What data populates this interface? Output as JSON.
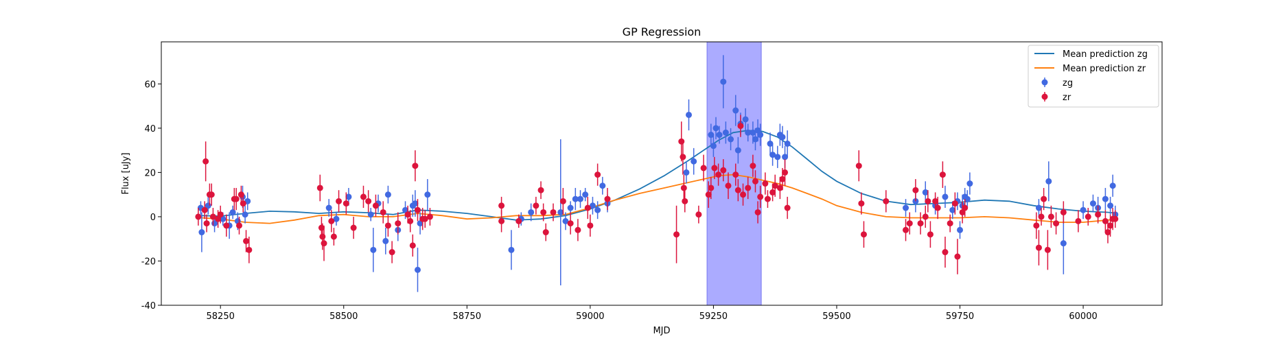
{
  "chart_data": {
    "type": "scatter",
    "title": "GP Regression",
    "xlabel": "MJD",
    "ylabel": "Flux [uJy]",
    "xlim": [
      58130,
      60160
    ],
    "ylim": [
      -40,
      79
    ],
    "xticks": [
      58250,
      58500,
      58750,
      59000,
      59250,
      59500,
      59750,
      60000
    ],
    "yticks": [
      -40,
      -20,
      0,
      20,
      40,
      60
    ],
    "grid": false,
    "legend_position": "top-right",
    "highlight_region": {
      "x": [
        59237,
        59347
      ],
      "color": "#a6a6ff"
    },
    "series": [
      {
        "name": "Mean prediction zg",
        "kind": "line",
        "color": "#1f77b4",
        "x": [
          58210,
          58250,
          58300,
          58350,
          58400,
          58450,
          58500,
          58550,
          58600,
          58650,
          58700,
          58750,
          58800,
          58850,
          58900,
          58950,
          59000,
          59050,
          59100,
          59150,
          59200,
          59230,
          59260,
          59290,
          59320,
          59350,
          59380,
          59410,
          59440,
          59470,
          59500,
          59550,
          59600,
          59650,
          59700,
          59750,
          59800,
          59850,
          59900,
          59950,
          60000,
          60050,
          60070
        ],
        "y": [
          0.5,
          0.3,
          1.5,
          2.5,
          2.2,
          1.5,
          2.2,
          1.8,
          1.0,
          3.0,
          2.5,
          1.5,
          0.0,
          -1.5,
          -1.0,
          0.5,
          3.5,
          7.5,
          12.5,
          18.5,
          25.5,
          30.0,
          34.5,
          38.0,
          39.0,
          38.5,
          36.0,
          31.5,
          26.0,
          20.5,
          16.0,
          10.5,
          7.0,
          5.5,
          6.0,
          6.5,
          7.5,
          7.0,
          5.0,
          3.5,
          2.5,
          2.0,
          1.5
        ]
      },
      {
        "name": "Mean prediction zr",
        "kind": "line",
        "color": "#ff7f0e",
        "x": [
          58210,
          58250,
          58300,
          58350,
          58400,
          58450,
          58500,
          58550,
          58600,
          58650,
          58700,
          58750,
          58800,
          58850,
          58900,
          58950,
          59000,
          59050,
          59100,
          59150,
          59200,
          59230,
          59260,
          59290,
          59320,
          59350,
          59380,
          59410,
          59440,
          59470,
          59500,
          59550,
          59600,
          59650,
          59700,
          59750,
          59800,
          59850,
          59900,
          59950,
          60000,
          60050,
          60070
        ],
        "y": [
          -0.5,
          -1.0,
          -2.5,
          -3.0,
          -1.5,
          0.5,
          1.0,
          0.0,
          0.0,
          1.5,
          0.5,
          -1.0,
          -0.5,
          0.5,
          0.5,
          1.0,
          4.0,
          7.5,
          10.5,
          13.0,
          15.5,
          17.0,
          18.5,
          19.0,
          18.0,
          16.5,
          15.0,
          13.0,
          10.5,
          8.0,
          5.0,
          2.0,
          0.0,
          -0.5,
          -0.5,
          -0.5,
          0.0,
          -0.5,
          -1.5,
          -2.5,
          -2.5,
          -1.5,
          -1.0
        ]
      },
      {
        "name": "zg",
        "kind": "errorbar",
        "color": "#4169e1",
        "points": [
          [
            58210,
            4,
            3
          ],
          [
            58212,
            -7,
            9
          ],
          [
            58225,
            5,
            4
          ],
          [
            58238,
            -3,
            4
          ],
          [
            58255,
            -1,
            3
          ],
          [
            58268,
            -4,
            6
          ],
          [
            58275,
            2,
            3
          ],
          [
            58285,
            -2,
            4
          ],
          [
            58295,
            9,
            5
          ],
          [
            58300,
            1,
            4
          ],
          [
            58305,
            7,
            4
          ],
          [
            58470,
            4,
            4
          ],
          [
            58485,
            -1,
            3
          ],
          [
            58510,
            9,
            4
          ],
          [
            58555,
            1,
            3
          ],
          [
            58560,
            -15,
            10
          ],
          [
            58570,
            6,
            4
          ],
          [
            58585,
            -11,
            6
          ],
          [
            58590,
            10,
            4
          ],
          [
            58610,
            -6,
            5
          ],
          [
            58625,
            3,
            4
          ],
          [
            58640,
            5,
            5
          ],
          [
            58645,
            6,
            6
          ],
          [
            58650,
            -24,
            10
          ],
          [
            58655,
            -3,
            5
          ],
          [
            58670,
            10,
            7
          ],
          [
            58840,
            -15,
            9
          ],
          [
            58860,
            -1,
            3
          ],
          [
            58880,
            2,
            4
          ],
          [
            58940,
            2,
            33
          ],
          [
            58950,
            -2,
            4
          ],
          [
            58960,
            4,
            3
          ],
          [
            58970,
            8,
            5
          ],
          [
            58980,
            8,
            4
          ],
          [
            58990,
            10,
            3
          ],
          [
            59005,
            5,
            4
          ],
          [
            59015,
            3,
            4
          ],
          [
            59025,
            14,
            4
          ],
          [
            59035,
            6,
            4
          ],
          [
            59195,
            20,
            5
          ],
          [
            59200,
            46,
            7
          ],
          [
            59210,
            25,
            6
          ],
          [
            59245,
            37,
            5
          ],
          [
            59250,
            32,
            5
          ],
          [
            59255,
            40,
            5
          ],
          [
            59262,
            37,
            4
          ],
          [
            59270,
            61,
            12
          ],
          [
            59275,
            38,
            5
          ],
          [
            59285,
            35,
            5
          ],
          [
            59295,
            48,
            7
          ],
          [
            59300,
            30,
            6
          ],
          [
            59305,
            42,
            5
          ],
          [
            59315,
            44,
            5
          ],
          [
            59320,
            38,
            4
          ],
          [
            59330,
            38,
            5
          ],
          [
            59335,
            35,
            5
          ],
          [
            59340,
            39,
            5
          ],
          [
            59345,
            37,
            5
          ],
          [
            59365,
            33,
            5
          ],
          [
            59370,
            28,
            5
          ],
          [
            59380,
            27,
            5
          ],
          [
            59385,
            37,
            5
          ],
          [
            59390,
            36,
            5
          ],
          [
            59395,
            27,
            5
          ],
          [
            59400,
            33,
            6
          ],
          [
            59640,
            4,
            4
          ],
          [
            59660,
            7,
            5
          ],
          [
            59680,
            11,
            5
          ],
          [
            59700,
            5,
            4
          ],
          [
            59720,
            9,
            5
          ],
          [
            59735,
            3,
            4
          ],
          [
            59745,
            7,
            4
          ],
          [
            59750,
            -6,
            4
          ],
          [
            59755,
            5,
            5
          ],
          [
            59760,
            9,
            4
          ],
          [
            59765,
            8,
            4
          ],
          [
            59770,
            15,
            5
          ],
          [
            59910,
            4,
            4
          ],
          [
            59930,
            16,
            9
          ],
          [
            59960,
            -12,
            14
          ],
          [
            60000,
            3,
            4
          ],
          [
            60020,
            6,
            4
          ],
          [
            60030,
            4,
            5
          ],
          [
            60045,
            8,
            5
          ],
          [
            60055,
            5,
            4
          ],
          [
            60060,
            14,
            5
          ],
          [
            60065,
            1,
            4
          ]
        ]
      },
      {
        "name": "zr",
        "kind": "errorbar",
        "color": "#dc143c",
        "points": [
          [
            58205,
            0,
            4
          ],
          [
            58218,
            3,
            4
          ],
          [
            58220,
            25,
            9
          ],
          [
            58222,
            -3,
            4
          ],
          [
            58228,
            10,
            5
          ],
          [
            58232,
            10,
            5
          ],
          [
            58235,
            0,
            4
          ],
          [
            58245,
            -1,
            4
          ],
          [
            58250,
            1,
            4
          ],
          [
            58262,
            -4,
            5
          ],
          [
            58278,
            8,
            5
          ],
          [
            58282,
            8,
            5
          ],
          [
            58288,
            -4,
            4
          ],
          [
            58292,
            10,
            4
          ],
          [
            58296,
            6,
            4
          ],
          [
            58302,
            -11,
            5
          ],
          [
            58308,
            -15,
            6
          ],
          [
            58452,
            13,
            6
          ],
          [
            58455,
            -5,
            5
          ],
          [
            58457,
            -9,
            6
          ],
          [
            58460,
            -12,
            8
          ],
          [
            58475,
            -2,
            5
          ],
          [
            58480,
            -9,
            4
          ],
          [
            58490,
            7,
            5
          ],
          [
            58505,
            6,
            5
          ],
          [
            58520,
            -5,
            5
          ],
          [
            58540,
            9,
            5
          ],
          [
            58550,
            7,
            5
          ],
          [
            58565,
            5,
            5
          ],
          [
            58580,
            2,
            5
          ],
          [
            58590,
            -4,
            5
          ],
          [
            58598,
            -16,
            5
          ],
          [
            58610,
            -3,
            5
          ],
          [
            58630,
            1,
            4
          ],
          [
            58635,
            -2,
            5
          ],
          [
            58640,
            -13,
            5
          ],
          [
            58645,
            23,
            7
          ],
          [
            58650,
            3,
            5
          ],
          [
            58660,
            -1,
            5
          ],
          [
            58665,
            -1,
            4
          ],
          [
            58675,
            0,
            4
          ],
          [
            58820,
            -2,
            5
          ],
          [
            58820,
            5,
            4
          ],
          [
            58855,
            -2,
            3
          ],
          [
            58890,
            5,
            4
          ],
          [
            58900,
            12,
            4
          ],
          [
            58905,
            2,
            4
          ],
          [
            58910,
            -7,
            4
          ],
          [
            58925,
            2,
            4
          ],
          [
            58945,
            7,
            6
          ],
          [
            58960,
            -3,
            5
          ],
          [
            58975,
            -6,
            5
          ],
          [
            58995,
            4,
            5
          ],
          [
            59000,
            -4,
            5
          ],
          [
            59015,
            19,
            5
          ],
          [
            59035,
            8,
            5
          ],
          [
            59175,
            -8,
            13
          ],
          [
            59185,
            34,
            9
          ],
          [
            59188,
            27,
            8
          ],
          [
            59190,
            13,
            6
          ],
          [
            59192,
            7,
            5
          ],
          [
            59220,
            1,
            4
          ],
          [
            59230,
            22,
            6
          ],
          [
            59240,
            10,
            6
          ],
          [
            59245,
            13,
            5
          ],
          [
            59252,
            22,
            5
          ],
          [
            59260,
            19,
            5
          ],
          [
            59270,
            21,
            5
          ],
          [
            59280,
            14,
            6
          ],
          [
            59295,
            19,
            5
          ],
          [
            59300,
            12,
            5
          ],
          [
            59305,
            41,
            5
          ],
          [
            59310,
            10,
            5
          ],
          [
            59320,
            13,
            5
          ],
          [
            59330,
            23,
            5
          ],
          [
            59335,
            16,
            5
          ],
          [
            59340,
            2,
            5
          ],
          [
            59345,
            9,
            5
          ],
          [
            59355,
            15,
            5
          ],
          [
            59360,
            8,
            4
          ],
          [
            59370,
            11,
            4
          ],
          [
            59375,
            14,
            5
          ],
          [
            59385,
            13,
            5
          ],
          [
            59390,
            17,
            5
          ],
          [
            59395,
            20,
            6
          ],
          [
            59400,
            4,
            5
          ],
          [
            59545,
            23,
            7
          ],
          [
            59550,
            6,
            5
          ],
          [
            59555,
            -8,
            6
          ],
          [
            59600,
            7,
            5
          ],
          [
            59640,
            -6,
            5
          ],
          [
            59648,
            -3,
            5
          ],
          [
            59660,
            12,
            5
          ],
          [
            59670,
            -3,
            5
          ],
          [
            59680,
            0,
            5
          ],
          [
            59685,
            7,
            5
          ],
          [
            59690,
            -8,
            6
          ],
          [
            59700,
            7,
            4
          ],
          [
            59705,
            4,
            5
          ],
          [
            59715,
            19,
            6
          ],
          [
            59720,
            -16,
            7
          ],
          [
            59730,
            -3,
            4
          ],
          [
            59740,
            6,
            5
          ],
          [
            59745,
            -18,
            8
          ],
          [
            59755,
            2,
            5
          ],
          [
            59760,
            4,
            4
          ],
          [
            59905,
            -4,
            6
          ],
          [
            59910,
            -14,
            8
          ],
          [
            59915,
            0,
            4
          ],
          [
            59920,
            8,
            5
          ],
          [
            59928,
            -15,
            9
          ],
          [
            59935,
            0,
            5
          ],
          [
            59945,
            -3,
            5
          ],
          [
            59960,
            2,
            5
          ],
          [
            59990,
            -2,
            5
          ],
          [
            60010,
            0,
            4
          ],
          [
            60030,
            1,
            4
          ],
          [
            60045,
            -2,
            5
          ],
          [
            60050,
            -7,
            5
          ],
          [
            60055,
            -4,
            5
          ],
          [
            60060,
            -1,
            5
          ],
          [
            60065,
            -1,
            4
          ]
        ]
      }
    ]
  }
}
